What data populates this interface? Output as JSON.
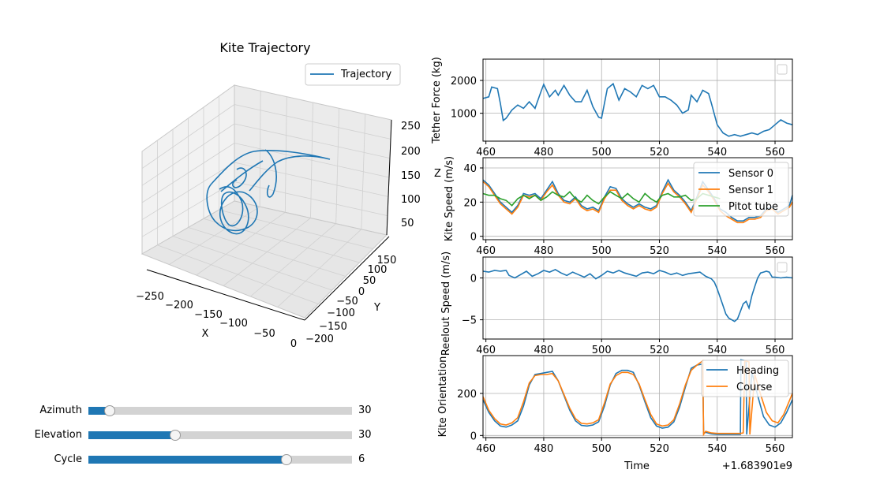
{
  "colors": {
    "c0": "#1f77b4",
    "c1": "#ff7f0e",
    "c2": "#2ca02c",
    "grid": "#b0b0b0"
  },
  "chart_data": [
    {
      "type": "line",
      "subtype": "3d-trajectory",
      "title": "Kite Trajectory",
      "xlabel": "X",
      "ylabel": "Y",
      "zlabel": "",
      "x_ticks": [
        "−250",
        "−200",
        "−150",
        "−100",
        "−50",
        "0"
      ],
      "y_ticks": [
        "−200",
        "−150",
        "−100",
        "−50",
        "0",
        "50",
        "100",
        "150"
      ],
      "z_ticks": [
        "50",
        "100",
        "150",
        "200",
        "250"
      ],
      "legend": [
        "Trajectory"
      ],
      "legend_position": "top-right",
      "grid": true
    },
    {
      "type": "line",
      "ylabel": "Tether Force (kg)",
      "x_ticks": [
        "460",
        "480",
        "500",
        "520",
        "540",
        "560"
      ],
      "y_ticks": [
        "1000",
        "2000"
      ],
      "xlim": [
        459,
        566
      ],
      "ylim": [
        150,
        2650
      ],
      "grid": true,
      "series": [
        {
          "key": "tether_force",
          "color": "#1f77b4",
          "x": [
            459,
            461,
            462,
            464,
            465,
            466,
            467,
            469,
            471,
            473,
            475,
            477,
            479,
            480,
            482,
            484,
            485,
            487,
            489,
            491,
            493,
            495,
            497,
            499,
            500,
            502,
            504,
            506,
            508,
            510,
            512,
            514,
            516,
            518,
            520,
            522,
            524,
            526,
            528,
            530,
            531,
            533,
            535,
            537,
            538,
            540,
            542,
            544,
            546,
            548,
            550,
            552,
            554,
            556,
            558,
            560,
            562,
            564,
            566
          ],
          "y": [
            1450,
            1500,
            1800,
            1750,
            1300,
            780,
            850,
            1100,
            1250,
            1150,
            1350,
            1150,
            1650,
            1880,
            1500,
            1700,
            1550,
            1850,
            1550,
            1350,
            1350,
            1700,
            1200,
            880,
            850,
            1750,
            1900,
            1400,
            1750,
            1650,
            1500,
            1850,
            1750,
            1850,
            1500,
            1500,
            1400,
            1250,
            1000,
            1100,
            1550,
            1350,
            1700,
            1600,
            1300,
            650,
            400,
            300,
            350,
            300,
            350,
            400,
            350,
            450,
            500,
            650,
            800,
            700,
            650
          ]
        }
      ]
    },
    {
      "type": "line",
      "ylabel": "Kite Speed (m/s)",
      "ylabel_prefix": "Z",
      "x_ticks": [
        "460",
        "480",
        "500",
        "520",
        "540",
        "560"
      ],
      "y_ticks": [
        "0",
        "20",
        "40"
      ],
      "xlim": [
        459,
        566
      ],
      "ylim": [
        -2,
        46
      ],
      "grid": true,
      "legend": [
        "Sensor 0",
        "Sensor 1",
        "Pitot tube"
      ],
      "legend_position": "top-right",
      "series": [
        {
          "name": "Sensor 0",
          "color": "#1f77b4",
          "x": [
            459,
            461,
            463,
            465,
            467,
            469,
            471,
            473,
            475,
            477,
            479,
            481,
            483,
            485,
            487,
            489,
            491,
            493,
            495,
            497,
            499,
            501,
            503,
            505,
            507,
            509,
            511,
            513,
            515,
            517,
            519,
            521,
            523,
            525,
            527,
            529,
            531,
            533,
            535,
            537,
            539,
            541,
            543,
            545,
            547,
            549,
            551,
            553,
            555,
            557,
            559,
            561,
            563,
            565,
            566
          ],
          "y": [
            33,
            30,
            25,
            20,
            17,
            14,
            18,
            25,
            24,
            25,
            22,
            27,
            32,
            25,
            21,
            20,
            23,
            18,
            16,
            17,
            15,
            23,
            29,
            28,
            22,
            19,
            17,
            19,
            17,
            16,
            18,
            26,
            33,
            27,
            24,
            20,
            15,
            23,
            32,
            27,
            22,
            16,
            14,
            11,
            9,
            9,
            11,
            11,
            12,
            16,
            17,
            14,
            16,
            18,
            24
          ]
        },
        {
          "name": "Sensor 1",
          "color": "#ff7f0e",
          "x": [
            459,
            461,
            463,
            465,
            467,
            469,
            471,
            473,
            475,
            477,
            479,
            481,
            483,
            485,
            487,
            489,
            491,
            493,
            495,
            497,
            499,
            501,
            503,
            505,
            507,
            509,
            511,
            513,
            515,
            517,
            519,
            521,
            523,
            525,
            527,
            529,
            531,
            533,
            535,
            537,
            539,
            541,
            543,
            545,
            547,
            549,
            551,
            553,
            555,
            557,
            559,
            561,
            563,
            565,
            566
          ],
          "y": [
            32,
            29,
            24,
            19,
            16,
            13,
            17,
            24,
            23,
            24,
            21,
            26,
            30,
            24,
            20,
            19,
            22,
            17,
            15,
            16,
            14,
            22,
            27,
            27,
            21,
            18,
            16,
            18,
            16,
            15,
            17,
            25,
            31,
            26,
            23,
            19,
            14,
            22,
            30,
            26,
            21,
            15,
            12,
            10,
            8,
            8,
            10,
            10,
            11,
            15,
            16,
            13,
            15,
            17,
            20
          ]
        },
        {
          "name": "Pitot tube",
          "color": "#2ca02c",
          "x": [
            459,
            461,
            463,
            465,
            467,
            469,
            471,
            473,
            475,
            477,
            479,
            481,
            483,
            485,
            487,
            489,
            491,
            493,
            495,
            497,
            499,
            501,
            503,
            505,
            507,
            509,
            511,
            513,
            515,
            517,
            519,
            521,
            523,
            525,
            527,
            529,
            531,
            533,
            535,
            537,
            539,
            541
          ],
          "y": [
            25,
            24,
            24,
            22,
            21,
            18,
            22,
            24,
            22,
            24,
            21,
            23,
            26,
            24,
            23,
            26,
            22,
            20,
            24,
            21,
            19,
            23,
            26,
            24,
            22,
            25,
            22,
            20,
            25,
            22,
            20,
            24,
            25,
            23,
            23,
            24,
            21,
            22,
            25,
            24,
            23,
            22
          ]
        }
      ]
    },
    {
      "type": "line",
      "ylabel": "Reelout Speed (m/s)",
      "x_ticks": [
        "460",
        "480",
        "500",
        "520",
        "540",
        "560"
      ],
      "y_ticks": [
        "−5",
        "0"
      ],
      "xlim": [
        459,
        566
      ],
      "ylim": [
        -7.3,
        2.5
      ],
      "grid": true,
      "series": [
        {
          "key": "reelout_speed",
          "color": "#1f77b4",
          "x": [
            459,
            461,
            463,
            465,
            467,
            468,
            470,
            472,
            474,
            476,
            478,
            480,
            482,
            484,
            486,
            488,
            490,
            492,
            494,
            496,
            498,
            500,
            502,
            504,
            506,
            508,
            510,
            512,
            514,
            516,
            518,
            520,
            522,
            524,
            526,
            528,
            530,
            532,
            534,
            536,
            538,
            539,
            540,
            541,
            542,
            543,
            544,
            545,
            546,
            547,
            548,
            549,
            550,
            551,
            552,
            553,
            554,
            555,
            556,
            557,
            558,
            559,
            560,
            562,
            564,
            566
          ],
          "y": [
            0.8,
            0.7,
            0.9,
            0.8,
            0.9,
            0.3,
            0.0,
            0.4,
            0.8,
            0.2,
            0.5,
            0.9,
            0.7,
            1.0,
            0.6,
            0.3,
            0.7,
            0.4,
            0.1,
            0.5,
            -0.1,
            0.3,
            0.8,
            0.6,
            0.9,
            0.6,
            0.4,
            0.2,
            0.6,
            0.7,
            0.5,
            0.9,
            0.7,
            0.4,
            0.6,
            0.3,
            0.5,
            0.6,
            0.7,
            0.2,
            -0.1,
            -0.5,
            -1.3,
            -2.3,
            -3.3,
            -4.3,
            -4.8,
            -5.0,
            -5.2,
            -4.9,
            -4.0,
            -3.1,
            -2.8,
            -3.6,
            -2.1,
            -1.0,
            0.0,
            0.6,
            0.7,
            0.8,
            0.7,
            0.1,
            0.1,
            0.0,
            0.1,
            0.0
          ]
        }
      ]
    },
    {
      "type": "line",
      "ylabel": "Kite Orientation",
      "xlabel": "Time",
      "x_offset_label": "+1.683901e9",
      "x_ticks": [
        "460",
        "480",
        "500",
        "520",
        "540",
        "560"
      ],
      "y_ticks": [
        "0",
        "200"
      ],
      "xlim": [
        459,
        566
      ],
      "ylim": [
        -10,
        380
      ],
      "grid": true,
      "legend": [
        "Heading",
        "Course"
      ],
      "legend_position": "top-right",
      "series": [
        {
          "name": "Heading",
          "color": "#1f77b4",
          "x": [
            459,
            461,
            463,
            465,
            467,
            469,
            471,
            473,
            475,
            477,
            479,
            481,
            483,
            485,
            487,
            489,
            491,
            493,
            495,
            497,
            499,
            501,
            503,
            505,
            507,
            509,
            511,
            513,
            515,
            517,
            519,
            521,
            523,
            525,
            527,
            529,
            531,
            533,
            535,
            535.3,
            536,
            538,
            540,
            542,
            544,
            546,
            548,
            548.2,
            550,
            550.2,
            552,
            554,
            556,
            558,
            560,
            562,
            564,
            566
          ],
          "y": [
            170,
            110,
            70,
            45,
            40,
            50,
            70,
            140,
            240,
            290,
            295,
            300,
            305,
            260,
            190,
            120,
            70,
            48,
            45,
            50,
            65,
            140,
            240,
            295,
            310,
            310,
            300,
            240,
            160,
            85,
            45,
            35,
            40,
            65,
            135,
            230,
            320,
            335,
            340,
            10,
            15,
            8,
            5,
            5,
            5,
            5,
            5,
            360,
            355,
            5,
            300,
            190,
            90,
            50,
            40,
            60,
            110,
            170
          ]
        },
        {
          "name": "Course",
          "color": "#ff7f0e",
          "x": [
            459,
            461,
            463,
            465,
            467,
            469,
            471,
            473,
            475,
            477,
            479,
            481,
            483,
            485,
            487,
            489,
            491,
            493,
            495,
            497,
            499,
            501,
            503,
            505,
            507,
            509,
            511,
            513,
            515,
            517,
            519,
            521,
            523,
            525,
            527,
            529,
            531,
            533,
            535,
            535.3,
            536,
            538,
            540,
            542,
            544,
            546,
            548,
            549,
            549.5,
            551,
            551.3,
            553,
            555,
            557,
            559,
            561,
            563,
            566
          ],
          "y": [
            185,
            120,
            80,
            55,
            50,
            60,
            85,
            160,
            250,
            285,
            290,
            290,
            295,
            260,
            195,
            130,
            80,
            58,
            55,
            60,
            75,
            155,
            245,
            285,
            300,
            300,
            290,
            245,
            170,
            100,
            55,
            45,
            50,
            75,
            150,
            240,
            310,
            335,
            355,
            5,
            20,
            12,
            10,
            10,
            10,
            10,
            10,
            12,
            355,
            350,
            5,
            290,
            195,
            110,
            70,
            60,
            100,
            200
          ]
        }
      ]
    }
  ],
  "sliders": [
    {
      "label": "Azimuth",
      "value": "30",
      "fraction": 0.08
    },
    {
      "label": "Elevation",
      "value": "30",
      "fraction": 0.33
    },
    {
      "label": "Cycle",
      "value": "6",
      "fraction": 0.75
    }
  ]
}
